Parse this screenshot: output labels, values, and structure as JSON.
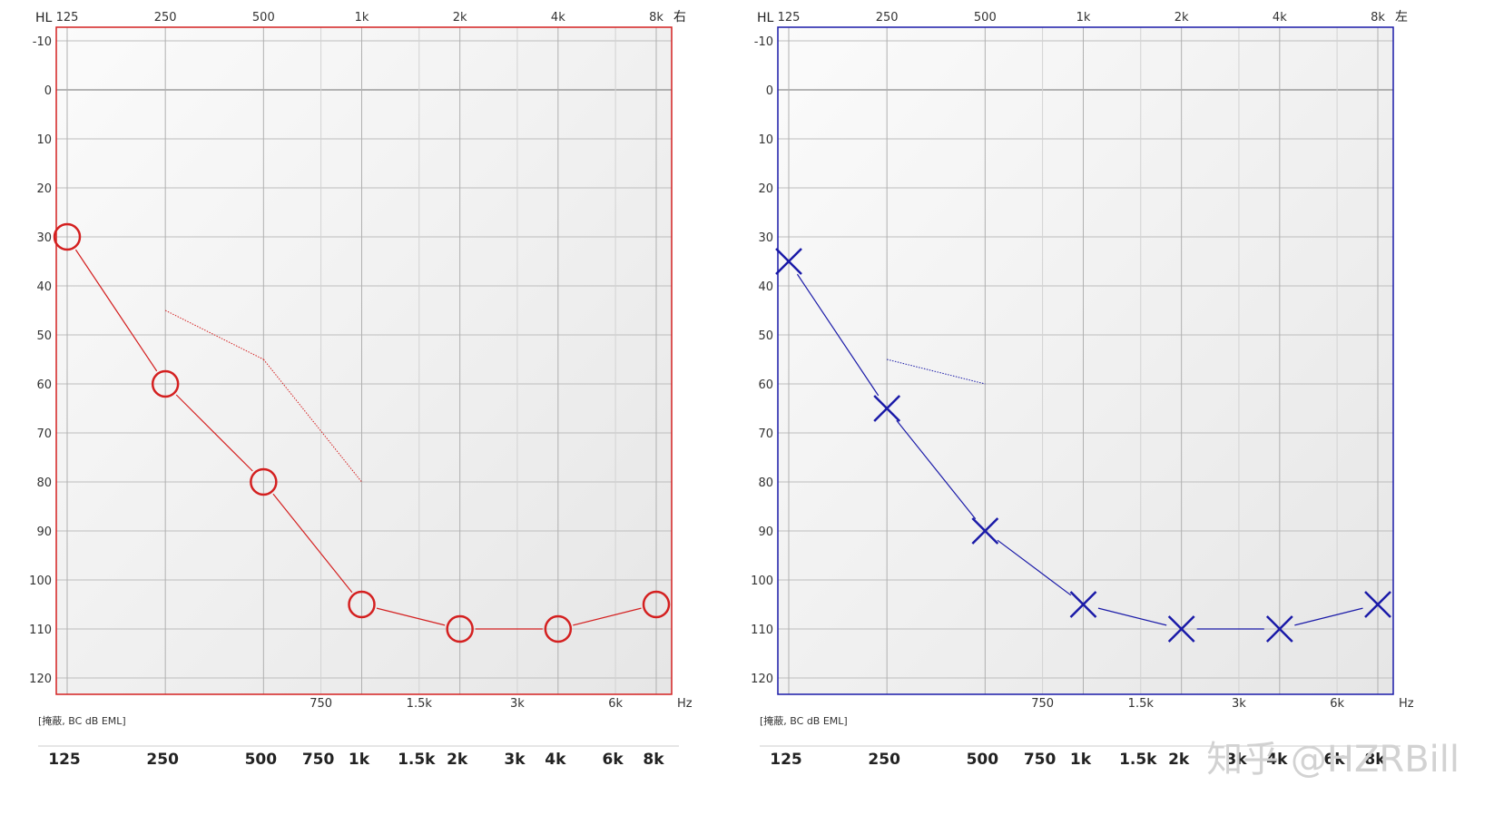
{
  "chart_data": [
    {
      "type": "line",
      "ear": "right",
      "color": "#d42020",
      "marker": "circle",
      "corner_left": "HL",
      "corner_right": "右",
      "x_unit": "Hz",
      "top_ticks": [
        "125",
        "250",
        "500",
        "1k",
        "2k",
        "4k",
        "8k"
      ],
      "mid_ticks": [
        "750",
        "1.5k",
        "3k",
        "6k"
      ],
      "y_ticks": [
        "-10",
        "0",
        "10",
        "20",
        "30",
        "40",
        "50",
        "60",
        "70",
        "80",
        "90",
        "100",
        "110",
        "120"
      ],
      "ylim": [
        -10,
        125
      ],
      "grid": true,
      "note": "[掩蔽, BC dB EML]",
      "bottom_ticks": [
        "125",
        "250",
        "500",
        "750",
        "1k",
        "1.5k",
        "2k",
        "3k",
        "4k",
        "6k",
        "8k"
      ],
      "series": [
        {
          "kind": "air",
          "x": [
            125,
            250,
            500,
            1000,
            2000,
            4000,
            8000
          ],
          "y": [
            30,
            60,
            80,
            105,
            110,
            110,
            105
          ]
        },
        {
          "kind": "bone",
          "x": [
            250,
            500,
            1000
          ],
          "y": [
            45,
            55,
            80
          ]
        }
      ]
    },
    {
      "type": "line",
      "ear": "left",
      "color": "#1a1aa8",
      "marker": "x",
      "corner_left": "HL",
      "corner_right": "左",
      "x_unit": "Hz",
      "top_ticks": [
        "125",
        "250",
        "500",
        "1k",
        "2k",
        "4k",
        "8k"
      ],
      "mid_ticks": [
        "750",
        "1.5k",
        "3k",
        "6k"
      ],
      "y_ticks": [
        "-10",
        "0",
        "10",
        "20",
        "30",
        "40",
        "50",
        "60",
        "70",
        "80",
        "90",
        "100",
        "110",
        "120"
      ],
      "ylim": [
        -10,
        125
      ],
      "grid": true,
      "note": "[掩蔽, BC dB EML]",
      "bottom_ticks": [
        "125",
        "250",
        "500",
        "750",
        "1k",
        "1.5k",
        "2k",
        "3k",
        "4k",
        "6k",
        "8k"
      ],
      "series": [
        {
          "kind": "air",
          "x": [
            125,
            250,
            500,
            1000,
            2000,
            4000,
            8000
          ],
          "y": [
            35,
            65,
            90,
            105,
            110,
            110,
            105
          ]
        },
        {
          "kind": "bone",
          "x": [
            250,
            500
          ],
          "y": [
            55,
            60
          ]
        }
      ]
    }
  ],
  "watermark": "知乎 @HZRBill"
}
